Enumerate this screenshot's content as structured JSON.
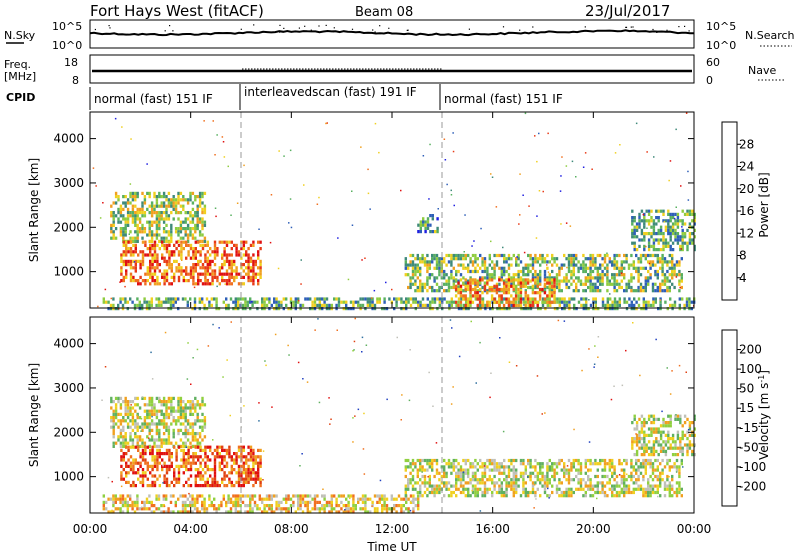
{
  "header": {
    "station": "Fort Hays West (fitACF)",
    "beam": "Beam 08",
    "date": "23/Jul/2017"
  },
  "noise_panel": {
    "left_label": "N.Sky",
    "right_label": "N.Search",
    "left_ticks": [
      "10^5",
      "10^0"
    ],
    "right_ticks": [
      "10^5",
      "10^0"
    ]
  },
  "freq_panel": {
    "left_label_1": "Freq.",
    "left_label_2": "[MHz]",
    "right_label": "Nave",
    "left_ticks": [
      "18",
      "8"
    ],
    "right_ticks": [
      "60",
      "0"
    ]
  },
  "cpid": {
    "label": "CPID",
    "segments": [
      {
        "start_h": 0,
        "end_h": 6,
        "text": "normal (fast) 151 IF"
      },
      {
        "start_h": 6,
        "end_h": 14,
        "text": "interleavedscan (fast) 191 IF"
      },
      {
        "start_h": 14,
        "end_h": 24,
        "text": "normal (fast) 151 IF"
      }
    ]
  },
  "colors": {
    "power": [
      "#1f1fe0",
      "#2e5fb8",
      "#3f8a7a",
      "#58b060",
      "#8fcc40",
      "#f0d020",
      "#f0a020",
      "#f07020",
      "#e83a18",
      "#e01010"
    ],
    "velocity": [
      "#2040c0",
      "#3070a0",
      "#60b060",
      "#90d040",
      "#c0c0b8",
      "#f0d020",
      "#f0a020",
      "#f07020",
      "#e04010",
      "#e01010"
    ]
  },
  "chart_data": [
    {
      "type": "heatmap",
      "name": "power-panel",
      "ylabel": "Slant Range [km]",
      "xlabel": "Time UT",
      "xlim_hours": [
        0,
        24
      ],
      "ylim_km": [
        180,
        4600
      ],
      "yticks": [
        "1000",
        "2000",
        "3000",
        "4000"
      ],
      "xticks": [
        "00:00",
        "04:00",
        "08:00",
        "12:00",
        "16:00",
        "20:00",
        "00:00"
      ],
      "colorbar": {
        "label": "Power [dB]",
        "range": [
          0,
          32
        ],
        "ticks": [
          "28",
          "24",
          "20",
          "16",
          "12",
          "8",
          "4"
        ]
      },
      "regions": [
        {
          "t0": 0.8,
          "t1": 4.6,
          "r0": 1700,
          "r1": 2800,
          "level": 0.45
        },
        {
          "t0": 1.2,
          "t1": 6.8,
          "r0": 700,
          "r1": 1700,
          "level": 0.75
        },
        {
          "t0": 0.5,
          "t1": 24,
          "r0": 200,
          "r1": 420,
          "level": 0.35
        },
        {
          "t0": 12.5,
          "t1": 23.5,
          "r0": 600,
          "r1": 1400,
          "level": 0.4
        },
        {
          "t0": 14.5,
          "t1": 18.5,
          "r0": 250,
          "r1": 850,
          "level": 0.7
        },
        {
          "t0": 21.5,
          "t1": 24,
          "r0": 1500,
          "r1": 2400,
          "level": 0.35
        },
        {
          "t0": 13.0,
          "t1": 13.8,
          "r0": 1900,
          "r1": 2300,
          "level": 0.3
        }
      ]
    },
    {
      "type": "heatmap",
      "name": "velocity-panel",
      "ylabel": "Slant Range [km]",
      "xlabel": "Time UT",
      "xlim_hours": [
        0,
        24
      ],
      "ylim_km": [
        180,
        4600
      ],
      "yticks": [
        "1000",
        "2000",
        "3000",
        "4000"
      ],
      "xticks": [
        "00:00",
        "04:00",
        "08:00",
        "12:00",
        "16:00",
        "20:00",
        "00:00"
      ],
      "colorbar": {
        "label": "Velocity [m s^-1]",
        "ticks": [
          "200",
          "100",
          "50",
          "15",
          "-15",
          "-50",
          "-100",
          "-200"
        ]
      },
      "regions": [
        {
          "t0": 0.8,
          "t1": 4.6,
          "r0": 1700,
          "r1": 2800,
          "level": 0.45
        },
        {
          "t0": 1.2,
          "t1": 6.8,
          "r0": 800,
          "r1": 1700,
          "level": 0.8
        },
        {
          "t0": 0.5,
          "t1": 13,
          "r0": 200,
          "r1": 600,
          "level": 0.55
        },
        {
          "t0": 12.5,
          "t1": 23.5,
          "r0": 600,
          "r1": 1400,
          "level": 0.45
        },
        {
          "t0": 21.5,
          "t1": 24,
          "r0": 1500,
          "r1": 2400,
          "level": 0.45
        }
      ]
    }
  ]
}
